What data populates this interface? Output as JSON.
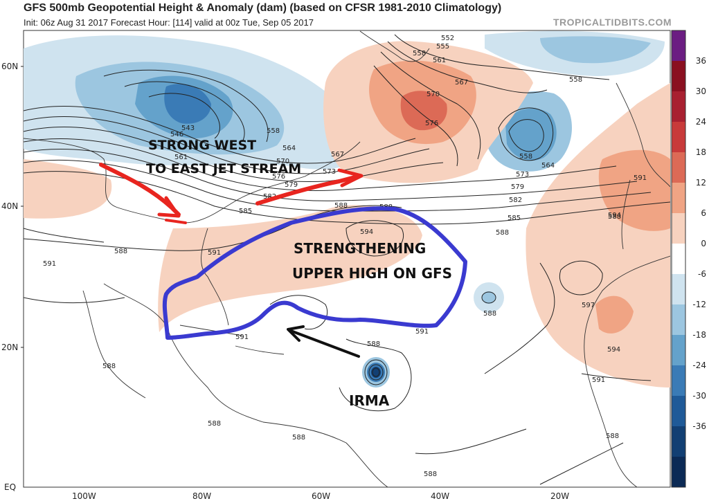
{
  "header": {
    "title": "GFS 500mb Geopotential Height & Anomaly (dam) (based on CFSR 1981-2010 Climatology)",
    "subtitle": "Init: 06z Aug 31 2017   Forecast Hour: [114]   valid at 00z Tue, Sep 05 2017",
    "brand": "TROPICALTIDBITS.COM"
  },
  "map": {
    "lat_labels": [
      "60N",
      "40N",
      "20N",
      "EQ"
    ],
    "lon_labels": [
      "100W",
      "80W",
      "60W",
      "40W",
      "20W"
    ],
    "contour_labels": [
      "552",
      "555",
      "558",
      "561",
      "567",
      "570",
      "576",
      "558",
      "558",
      "564",
      "573",
      "579",
      "582",
      "585",
      "588",
      "543",
      "546",
      "558",
      "564",
      "567",
      "570",
      "561",
      "576",
      "573",
      "579",
      "582",
      "585",
      "588",
      "591",
      "594",
      "588",
      "591",
      "591",
      "588",
      "588",
      "591",
      "594",
      "597",
      "594",
      "591",
      "588",
      "588",
      "588",
      "588",
      "588",
      "588",
      "591",
      "588"
    ],
    "annotations": {
      "jet": [
        "STRONG WEST",
        "TO EAST JET STREAM"
      ],
      "high": [
        "STRENGTHENING",
        "UPPER HIGH ON GFS"
      ],
      "storm": "IRMA"
    },
    "annotation_colors": {
      "jet_arrows": "#e8251f",
      "high_outline": "#3a3ad0",
      "storm_arrow": "#111111"
    }
  },
  "colorbar": {
    "ticks": [
      "36",
      "30",
      "24",
      "18",
      "12",
      "6",
      "0",
      "-6",
      "-12",
      "-18",
      "-24",
      "-30",
      "-36"
    ],
    "colors": [
      "#6b1d82",
      "#8a1020",
      "#a82030",
      "#c83a3a",
      "#dc6a56",
      "#f0a484",
      "#f7d2bf",
      "#ffffff",
      "#cfe3ef",
      "#9cc6e0",
      "#64a2cb",
      "#3a7bb6",
      "#1f5a98",
      "#123f73",
      "#0b2a55"
    ]
  }
}
